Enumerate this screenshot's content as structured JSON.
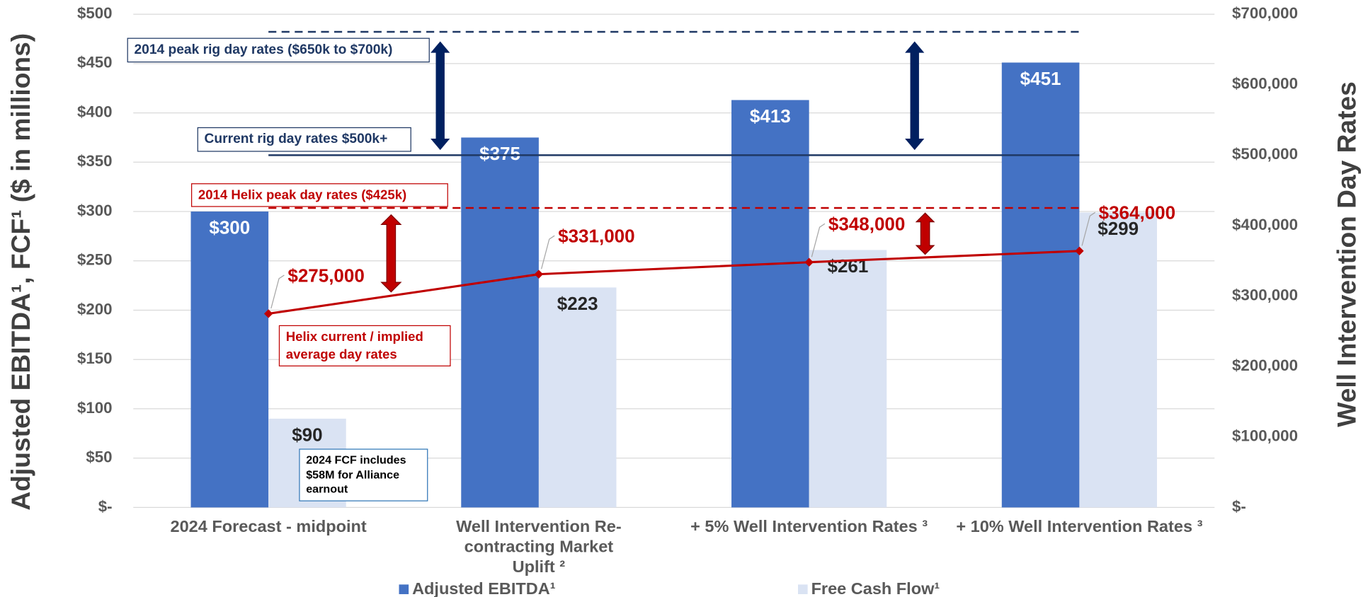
{
  "chart_data": {
    "type": "bar",
    "ylabel": "Adjusted EBITDA¹, FCF¹ ($ in millions)",
    "y2label": "Well Intervention Day Rates",
    "categories": [
      "2024 Forecast - midpoint",
      "Well Intervention Re-contracting Market Uplift ²",
      "+ 5% Well Intervention Rates ³",
      "+ 10% Well Intervention Rates ³"
    ],
    "series": [
      {
        "name": "Adjusted EBITDA¹",
        "type": "bar",
        "color": "#4472c4",
        "values": [
          300,
          375,
          413,
          451
        ],
        "value_labels": [
          "$300",
          "$375",
          "$413",
          "$451"
        ]
      },
      {
        "name": "Free Cash Flow¹",
        "type": "bar",
        "color": "#dae3f3",
        "values": [
          90,
          223,
          261,
          299
        ],
        "value_labels": [
          "$90",
          "$223",
          "$261",
          "$299"
        ]
      },
      {
        "type": "line",
        "axis": "y2",
        "color": "#c00000",
        "values": [
          275000,
          331000,
          348000,
          364000
        ],
        "value_labels": [
          "$275,000",
          "$331,000",
          "$348,000",
          "$364,000"
        ]
      }
    ],
    "ylim": [
      0,
      500
    ],
    "yticks": [
      {
        "value": 0,
        "label": "$-"
      },
      {
        "value": 50,
        "label": "$50"
      },
      {
        "value": 100,
        "label": "$100"
      },
      {
        "value": 150,
        "label": "$150"
      },
      {
        "value": 200,
        "label": "$200"
      },
      {
        "value": 250,
        "label": "$250"
      },
      {
        "value": 300,
        "label": "$300"
      },
      {
        "value": 350,
        "label": "$350"
      },
      {
        "value": 400,
        "label": "$400"
      },
      {
        "value": 450,
        "label": "$450"
      },
      {
        "value": 500,
        "label": "$500"
      }
    ],
    "y2lim": [
      0,
      700000
    ],
    "y2ticks": [
      {
        "value": 0,
        "label": "$-"
      },
      {
        "value": 100000,
        "label": "$100,000"
      },
      {
        "value": 200000,
        "label": "$200,000"
      },
      {
        "value": 300000,
        "label": "$300,000"
      },
      {
        "value": 400000,
        "label": "$400,000"
      },
      {
        "value": 500000,
        "label": "$500,000"
      },
      {
        "value": 600000,
        "label": "$600,000"
      },
      {
        "value": 700000,
        "label": "$700,000"
      }
    ],
    "grid": true,
    "legend": "bottom",
    "reference_lines": [
      {
        "value": 675000,
        "axis": "y2",
        "style": "dashed",
        "color": "#1f3864",
        "label": "2014 peak rig day rates ($650k to $700k)"
      },
      {
        "value": 500000,
        "axis": "y2",
        "style": "solid",
        "color": "#1f3864",
        "label": "Current rig day rates $500k+"
      },
      {
        "value": 425000,
        "axis": "y2",
        "style": "dashed",
        "color": "#c00000",
        "label": "2014 Helix peak day rates ($425k)"
      }
    ],
    "annotations": [
      "Helix current / implied average day rates",
      "2024 FCF includes $58M for Alliance earnout"
    ]
  }
}
